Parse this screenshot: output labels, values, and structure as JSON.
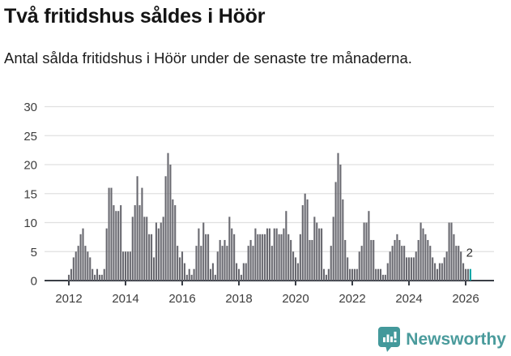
{
  "header": {
    "title": "Två fritidshus såldes i Höör",
    "subtitle": "Antal sålda fritidshus i Höör under de senaste tre månaderna."
  },
  "chart_data": {
    "type": "bar",
    "title": "Två fritidshus såldes i Höör",
    "subtitle": "Antal sålda fritidshus i Höör under de senaste tre månaderna.",
    "x_start": "2012-01",
    "frequency": "monthly",
    "values": [
      1,
      2,
      4,
      5,
      6,
      8,
      9,
      6,
      5,
      4,
      2,
      1,
      2,
      1,
      1,
      2,
      9,
      16,
      16,
      13,
      12,
      12,
      13,
      5,
      5,
      5,
      5,
      11,
      13,
      18,
      13,
      16,
      11,
      11,
      8,
      8,
      4,
      10,
      9,
      10,
      11,
      18,
      22,
      20,
      14,
      13,
      6,
      4,
      5,
      3,
      1,
      2,
      1,
      2,
      6,
      9,
      6,
      10,
      8,
      8,
      2,
      3,
      1,
      5,
      7,
      6,
      7,
      6,
      11,
      9,
      8,
      3,
      2,
      1,
      3,
      3,
      6,
      7,
      6,
      9,
      8,
      8,
      8,
      8,
      9,
      9,
      6,
      9,
      9,
      8,
      8,
      9,
      12,
      8,
      7,
      5,
      4,
      3,
      8,
      13,
      15,
      14,
      7,
      7,
      11,
      10,
      9,
      9,
      2,
      1,
      2,
      6,
      11,
      17,
      22,
      20,
      14,
      7,
      4,
      2,
      2,
      2,
      2,
      5,
      6,
      10,
      10,
      12,
      7,
      7,
      2,
      2,
      2,
      1,
      1,
      3,
      5,
      6,
      7,
      8,
      7,
      6,
      6,
      4,
      4,
      4,
      4,
      5,
      7,
      10,
      9,
      8,
      7,
      6,
      4,
      3,
      2,
      3,
      3,
      4,
      5,
      10,
      10,
      8,
      6,
      6,
      5,
      3,
      2,
      2,
      2
    ],
    "highlight_last": true,
    "last_value_label": "2",
    "x_tick_labels": [
      "2012",
      "2014",
      "2016",
      "2018",
      "2020",
      "2022",
      "2024",
      "2026"
    ],
    "x_tick_month_indices": [
      0,
      24,
      48,
      72,
      96,
      120,
      144,
      168
    ],
    "y_ticks": [
      0,
      5,
      10,
      15,
      20,
      25,
      30
    ],
    "ylim": [
      0,
      30
    ],
    "grid": true,
    "legend": "none",
    "bar_color": "#696970",
    "highlight_color": "#00a3a3",
    "grid_color": "#e0e0e0",
    "axis_color": "#3a3e46",
    "label_color": "#3d3d3d"
  },
  "footer": {
    "brand": "Newsworthy",
    "logo_icon": "bar-chart-speech-bubble-icon",
    "brand_color": "#4a9b9c"
  }
}
